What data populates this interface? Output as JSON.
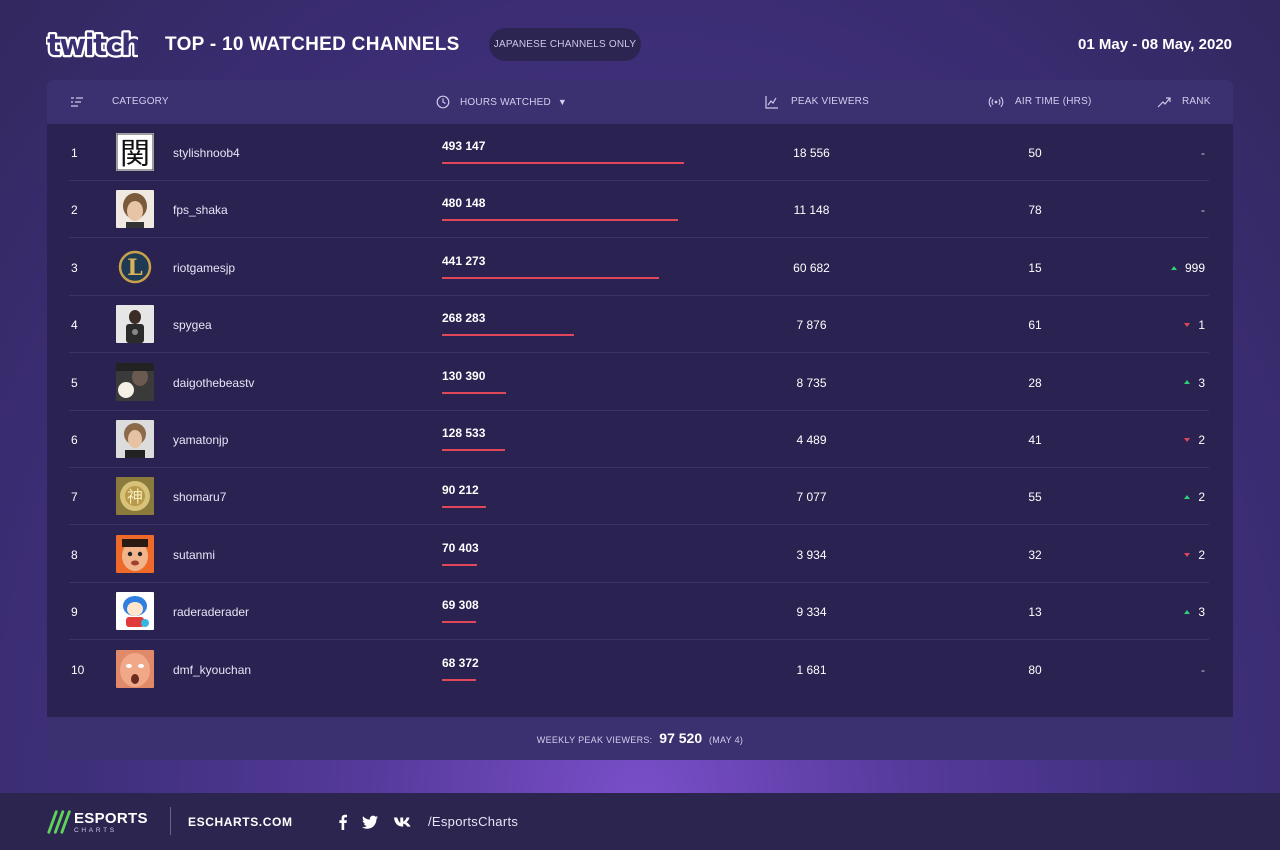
{
  "header": {
    "logo_text": "twitch",
    "title": "TOP - 10 WATCHED CHANNELS",
    "filter_pill": "JAPANESE CHANNELS ONLY",
    "date_range": "01 May - 08 May, 2020"
  },
  "table": {
    "columns": {
      "category": "CATEGORY",
      "hours": "HOURS WATCHED",
      "peak": "PEAK VIEWERS",
      "air": "AIR TIME (HRS)",
      "rank": "RANK"
    },
    "sort_indicator": "▼",
    "rows": [
      {
        "rank": "1",
        "channel": "stylishnoob4",
        "hours_label": "493 147",
        "peak": "18 556",
        "air": "50",
        "change": "-",
        "direction": "none"
      },
      {
        "rank": "2",
        "channel": "fps_shaka",
        "hours_label": "480 148",
        "peak": "11 148",
        "air": "78",
        "change": "-",
        "direction": "none"
      },
      {
        "rank": "3",
        "channel": "riotgamesjp",
        "hours_label": "441 273",
        "peak": "60 682",
        "air": "15",
        "change": "999",
        "direction": "up"
      },
      {
        "rank": "4",
        "channel": "spygea",
        "hours_label": "268 283",
        "peak": "7 876",
        "air": "61",
        "change": "1",
        "direction": "down"
      },
      {
        "rank": "5",
        "channel": "daigothebeastv",
        "hours_label": "130 390",
        "peak": "8 735",
        "air": "28",
        "change": "3",
        "direction": "up"
      },
      {
        "rank": "6",
        "channel": "yamatonjp",
        "hours_label": "128 533",
        "peak": "4 489",
        "air": "41",
        "change": "2",
        "direction": "down"
      },
      {
        "rank": "7",
        "channel": "shomaru7",
        "hours_label": "90 212",
        "peak": "7 077",
        "air": "55",
        "change": "2",
        "direction": "up"
      },
      {
        "rank": "8",
        "channel": "sutanmi",
        "hours_label": "70 403",
        "peak": "3 934",
        "air": "32",
        "change": "2",
        "direction": "down"
      },
      {
        "rank": "9",
        "channel": "raderaderader",
        "hours_label": "69 308",
        "peak": "9 334",
        "air": "13",
        "change": "3",
        "direction": "up"
      },
      {
        "rank": "10",
        "channel": "dmf_kyouchan",
        "hours_label": "68 372",
        "peak": "1 681",
        "air": "80",
        "change": "-",
        "direction": "none"
      }
    ],
    "footer": {
      "label": "WEEKLY PEAK VIEWERS:",
      "value": "97 520",
      "date": "(MAY 4)"
    }
  },
  "chart_data": {
    "type": "table",
    "title": "TOP - 10 WATCHED CHANNELS",
    "subtitle": "JAPANESE CHANNELS ONLY",
    "columns": [
      "CATEGORY",
      "HOURS WATCHED",
      "PEAK VIEWERS",
      "AIR TIME (HRS)",
      "RANK"
    ],
    "categories": [
      "stylishnoob4",
      "fps_shaka",
      "riotgamesjp",
      "spygea",
      "daigothebeastv",
      "yamatonjp",
      "shomaru7",
      "sutanmi",
      "raderaderader",
      "dmf_kyouchan"
    ],
    "series": [
      {
        "name": "HOURS WATCHED",
        "values": [
          493147,
          480148,
          441273,
          268283,
          130390,
          128533,
          90212,
          70403,
          69308,
          68372
        ]
      },
      {
        "name": "PEAK VIEWERS",
        "values": [
          18556,
          11148,
          60682,
          7876,
          8735,
          4489,
          7077,
          3934,
          9334,
          1681
        ]
      },
      {
        "name": "AIR TIME (HRS)",
        "values": [
          50,
          78,
          15,
          61,
          28,
          41,
          55,
          32,
          13,
          80
        ]
      }
    ],
    "bar_colors": {
      "hours_bar": "#e0475a",
      "rank_up": "#2fcf72",
      "rank_down": "#e0475a"
    }
  },
  "footer": {
    "brand": "ESPORTS",
    "brand_sub": "CHARTS",
    "site": "ESCHARTS.COM",
    "social_icons": [
      "facebook-icon",
      "twitter-icon",
      "vk-icon"
    ],
    "handle": "/EsportsCharts"
  },
  "colors": {
    "accent": "#e0475a",
    "panel": "#2a2250",
    "panel_header": "#3b3170",
    "brand_green": "#5fd35a"
  }
}
